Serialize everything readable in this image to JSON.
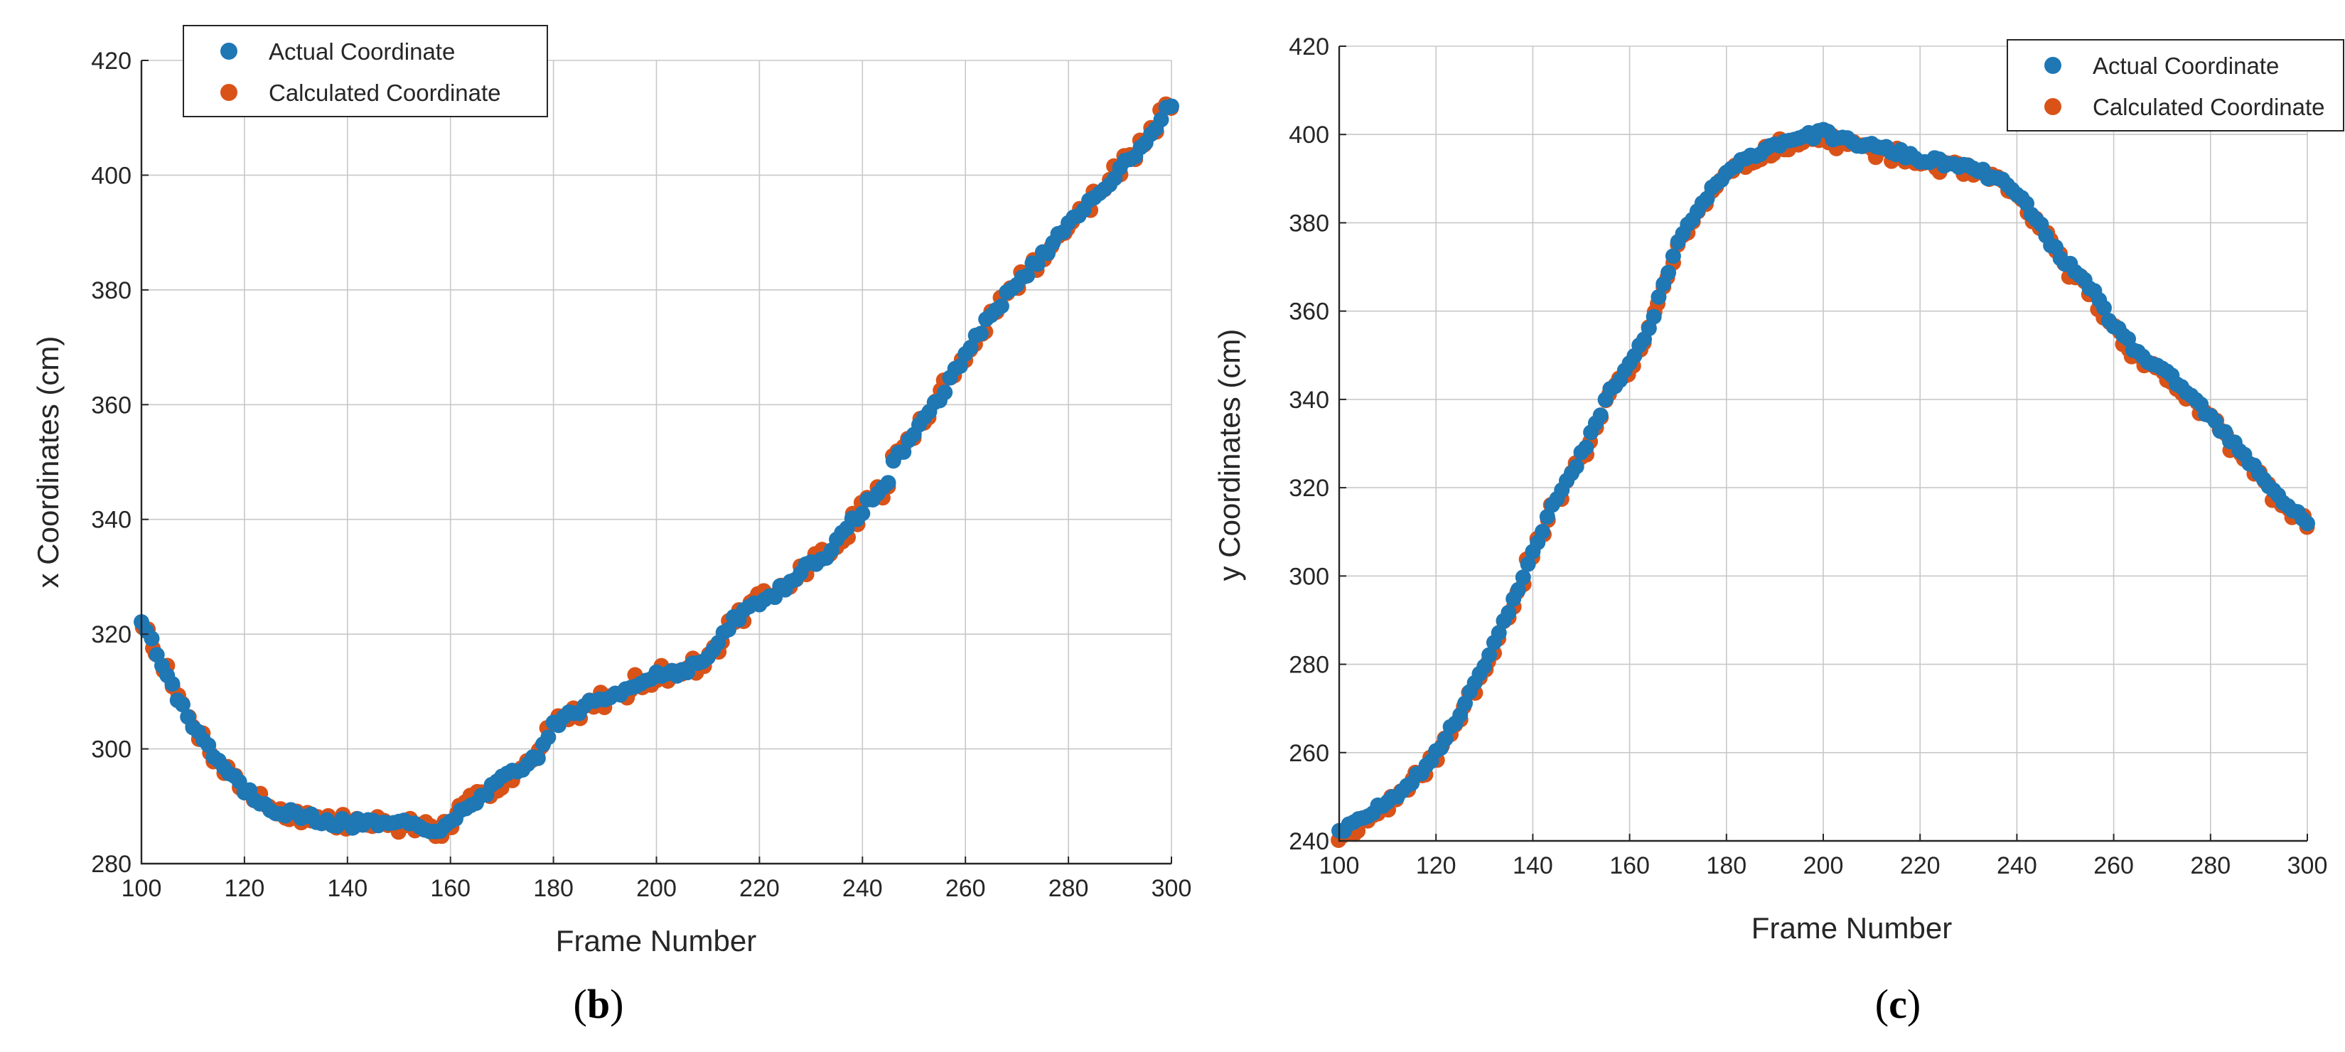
{
  "colors": {
    "actual": "#1f77b4",
    "calculated": "#d95319"
  },
  "chart_data": [
    {
      "type": "scatter",
      "panel_label": "b",
      "xlabel": "Frame Number",
      "ylabel": "x Coordinates (cm)",
      "xlim": [
        100,
        300
      ],
      "ylim": [
        280,
        420
      ],
      "xticks": [
        100,
        120,
        140,
        160,
        180,
        200,
        220,
        240,
        260,
        280,
        300
      ],
      "yticks": [
        280,
        300,
        320,
        340,
        360,
        380,
        400,
        420
      ],
      "grid": true,
      "legend_position": "top-left",
      "keypoints": [
        [
          100,
          322
        ],
        [
          102,
          319
        ],
        [
          105,
          313
        ],
        [
          108,
          307
        ],
        [
          111,
          303
        ],
        [
          114,
          299
        ],
        [
          117,
          296
        ],
        [
          120,
          293
        ],
        [
          123,
          291
        ],
        [
          126,
          289.5
        ],
        [
          130,
          288.5
        ],
        [
          135,
          287.5
        ],
        [
          140,
          287
        ],
        [
          145,
          287
        ],
        [
          150,
          286.8
        ],
        [
          155,
          286.5
        ],
        [
          157,
          286.2
        ],
        [
          158,
          285
        ],
        [
          160,
          287
        ],
        [
          163,
          289.5
        ],
        [
          166,
          292
        ],
        [
          170,
          294.5
        ],
        [
          174,
          296.5
        ],
        [
          177,
          299
        ],
        [
          180,
          304
        ],
        [
          184,
          306.5
        ],
        [
          188,
          308
        ],
        [
          192,
          309.5
        ],
        [
          196,
          311.5
        ],
        [
          200,
          313
        ],
        [
          204,
          313.5
        ],
        [
          208,
          314.5
        ],
        [
          212,
          318
        ],
        [
          215,
          322.5
        ],
        [
          218,
          324.5
        ],
        [
          222,
          326.5
        ],
        [
          226,
          329
        ],
        [
          230,
          332.5
        ],
        [
          234,
          334.5
        ],
        [
          238,
          339.5
        ],
        [
          242,
          344
        ],
        [
          245,
          346
        ],
        [
          246,
          350
        ],
        [
          250,
          355
        ],
        [
          254,
          360
        ],
        [
          258,
          365.5
        ],
        [
          262,
          372
        ],
        [
          266,
          376.5
        ],
        [
          270,
          381.5
        ],
        [
          274,
          385
        ],
        [
          278,
          389
        ],
        [
          282,
          393
        ],
        [
          286,
          397
        ],
        [
          290,
          401
        ],
        [
          294,
          405
        ],
        [
          298,
          410
        ],
        [
          300,
          412.5
        ]
      ],
      "series": [
        {
          "name": "Actual Coordinate",
          "color_key": "actual"
        },
        {
          "name": "Calculated Coordinate",
          "color_key": "calculated"
        }
      ]
    },
    {
      "type": "scatter",
      "panel_label": "c",
      "xlabel": "Frame Number",
      "ylabel": "y Coordinates (cm)",
      "xlim": [
        100,
        300
      ],
      "ylim": [
        240,
        420
      ],
      "xticks": [
        100,
        120,
        140,
        160,
        180,
        200,
        220,
        240,
        260,
        280,
        300
      ],
      "yticks": [
        240,
        260,
        280,
        300,
        320,
        340,
        360,
        380,
        400,
        420
      ],
      "grid": true,
      "legend_position": "top-right",
      "keypoints": [
        [
          100,
          241
        ],
        [
          104,
          243.5
        ],
        [
          108,
          246.5
        ],
        [
          112,
          250
        ],
        [
          116,
          254
        ],
        [
          120,
          259
        ],
        [
          124,
          266
        ],
        [
          128,
          275
        ],
        [
          132,
          284
        ],
        [
          136,
          294
        ],
        [
          140,
          305
        ],
        [
          144,
          315
        ],
        [
          148,
          322
        ],
        [
          152,
          331
        ],
        [
          156,
          341
        ],
        [
          160,
          347
        ],
        [
          164,
          355
        ],
        [
          166,
          362
        ],
        [
          168,
          368
        ],
        [
          170,
          375
        ],
        [
          174,
          382
        ],
        [
          178,
          388
        ],
        [
          182,
          392
        ],
        [
          186,
          395
        ],
        [
          190,
          397
        ],
        [
          194,
          398.5
        ],
        [
          198,
          399
        ],
        [
          200,
          399.5
        ],
        [
          204,
          398
        ],
        [
          208,
          397
        ],
        [
          212,
          396
        ],
        [
          216,
          395
        ],
        [
          220,
          393.5
        ],
        [
          224,
          393
        ],
        [
          228,
          392
        ],
        [
          232,
          391
        ],
        [
          236,
          389
        ],
        [
          240,
          386
        ],
        [
          244,
          380
        ],
        [
          248,
          373
        ],
        [
          252,
          368
        ],
        [
          256,
          363
        ],
        [
          260,
          356
        ],
        [
          264,
          351
        ],
        [
          268,
          347
        ],
        [
          272,
          344
        ],
        [
          276,
          340
        ],
        [
          280,
          335
        ],
        [
          284,
          330
        ],
        [
          288,
          325
        ],
        [
          292,
          320
        ],
        [
          296,
          315
        ],
        [
          300,
          311.5
        ]
      ],
      "series": [
        {
          "name": "Actual Coordinate",
          "color_key": "actual"
        },
        {
          "name": "Calculated Coordinate",
          "color_key": "calculated"
        }
      ]
    }
  ]
}
